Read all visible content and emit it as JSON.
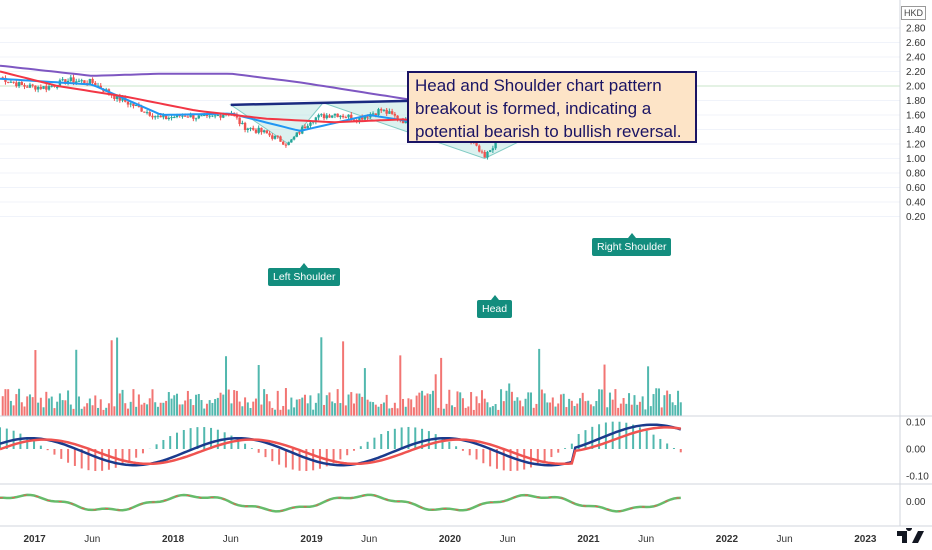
{
  "currency": "HKD",
  "price_axis": [
    "2.80",
    "2.60",
    "2.40",
    "2.20",
    "2.00",
    "1.80",
    "1.60",
    "1.40",
    "1.20",
    "1.00",
    "0.80",
    "0.60",
    "0.40",
    "0.20"
  ],
  "macd_axis": [
    "0.10",
    "0.00",
    "-0.10"
  ],
  "osc_axis": [
    "0.00"
  ],
  "time_axis": [
    "2017",
    "Jun",
    "2018",
    "Jun",
    "2019",
    "Jun",
    "2020",
    "Jun",
    "2021",
    "Jun",
    "2022",
    "Jun",
    "2023"
  ],
  "annotation": {
    "line1": "Head and Shoulder chart pattern",
    "line2": "breakout is formed, indicating a",
    "line3": "potential bearish to bullish reversal."
  },
  "labels": {
    "left_shoulder": "Left Shoulder",
    "head": "Head",
    "right_shoulder": "Right Shoulder"
  },
  "colors": {
    "up": "#26a69a",
    "down": "#ef5350",
    "ma_fast": "#2196f3",
    "ma_mid": "#f23645",
    "ma_slow": "#7e57c2",
    "neckline": "#1a2a80",
    "pattern_fill": "#b2dfdb",
    "tag": "#138d7e",
    "annotation_bg": "#fde4c7",
    "annotation_border": "#1a1464"
  },
  "chart_data": {
    "type": "line",
    "title": "",
    "x_range": [
      "2016-10",
      "2023-04"
    ],
    "price_range": [
      0.1,
      2.9
    ],
    "price_path": [
      [
        "2016-10",
        2.12
      ],
      [
        "2016-12",
        2.0
      ],
      [
        "2017-02",
        1.98
      ],
      [
        "2017-04",
        2.08
      ],
      [
        "2017-06",
        2.05
      ],
      [
        "2017-08",
        1.85
      ],
      [
        "2017-10",
        1.7
      ],
      [
        "2017-12",
        1.55
      ],
      [
        "2018-02",
        1.6
      ],
      [
        "2018-04",
        1.55
      ],
      [
        "2018-06",
        1.65
      ],
      [
        "2018-07",
        1.45
      ],
      [
        "2018-09",
        1.35
      ],
      [
        "2018-11",
        1.2
      ],
      [
        "2019-01",
        1.55
      ],
      [
        "2019-03",
        1.62
      ],
      [
        "2019-05",
        1.55
      ],
      [
        "2019-07",
        1.67
      ],
      [
        "2019-09",
        1.52
      ],
      [
        "2019-11",
        1.42
      ],
      [
        "2020-01",
        1.38
      ],
      [
        "2020-03",
        1.2
      ],
      [
        "2020-04",
        1.0
      ],
      [
        "2020-05",
        1.25
      ],
      [
        "2020-07",
        1.35
      ],
      [
        "2020-09",
        1.38
      ],
      [
        "2020-11",
        1.4
      ],
      [
        "2021-01",
        1.45
      ],
      [
        "2021-03",
        1.72
      ],
      [
        "2021-04",
        1.42
      ],
      [
        "2021-06",
        1.62
      ],
      [
        "2021-07",
        1.78
      ],
      [
        "2021-08",
        1.7
      ],
      [
        "2021-09",
        2.0
      ]
    ],
    "neckline": [
      [
        "2018-06",
        1.74
      ],
      [
        "2021-09",
        1.88
      ]
    ],
    "pattern_points": {
      "left_shoulder": [
        "2018-11",
        1.2
      ],
      "head": [
        "2020-04",
        1.0
      ],
      "right_shoulder": [
        "2021-04",
        1.42
      ]
    },
    "series": [
      {
        "values": [
          [
            "2016-10",
            2.1
          ],
          [
            "2017-06",
            2.02
          ],
          [
            "2017-12",
            1.6
          ],
          [
            "2018-06",
            1.62
          ],
          [
            "2018-12",
            1.38
          ],
          [
            "2019-06",
            1.6
          ],
          [
            "2019-12",
            1.45
          ],
          [
            "2020-04",
            1.25
          ],
          [
            "2020-10",
            1.37
          ],
          [
            "2021-03",
            1.55
          ],
          [
            "2021-06",
            1.6
          ],
          [
            "2021-09",
            1.75
          ]
        ]
      },
      {
        "values": [
          [
            "2016-10",
            2.2
          ],
          [
            "2017-03",
            2.0
          ],
          [
            "2017-09",
            1.85
          ],
          [
            "2018-03",
            1.66
          ],
          [
            "2018-09",
            1.55
          ],
          [
            "2019-03",
            1.5
          ],
          [
            "2019-09",
            1.54
          ],
          [
            "2020-03",
            1.45
          ],
          [
            "2020-09",
            1.38
          ],
          [
            "2021-03",
            1.42
          ],
          [
            "2021-09",
            1.58
          ]
        ]
      },
      {
        "values": [
          [
            "2016-10",
            2.28
          ],
          [
            "2017-06",
            2.14
          ],
          [
            "2017-12",
            2.17
          ],
          [
            "2018-06",
            2.17
          ],
          [
            "2018-12",
            2.05
          ],
          [
            "2019-06",
            1.9
          ],
          [
            "2019-12",
            1.75
          ],
          [
            "2020-06",
            1.62
          ],
          [
            "2020-12",
            1.55
          ],
          [
            "2021-04",
            1.5
          ],
          [
            "2021-09",
            1.49
          ]
        ]
      }
    ],
    "volume_range": [
      0,
      1.0
    ],
    "macd_range": [
      -0.12,
      0.12
    ],
    "osc_range": [
      -0.1,
      0.1
    ]
  }
}
